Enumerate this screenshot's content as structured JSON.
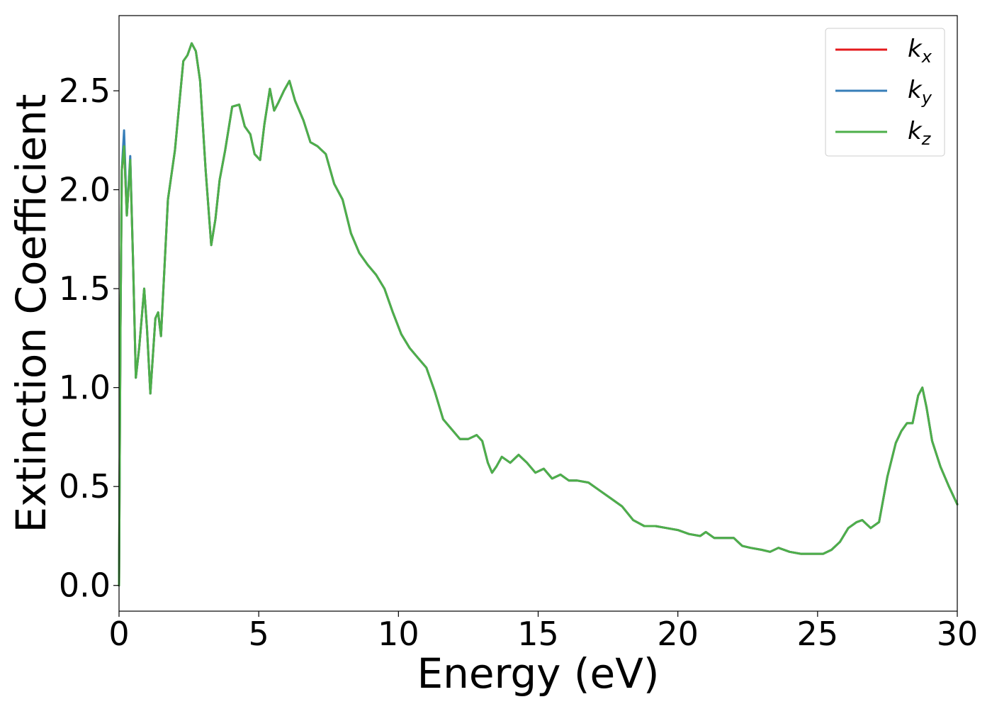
{
  "chart_data": {
    "type": "line",
    "title": "",
    "xlabel": "Energy (eV)",
    "ylabel": "Extinction Coefficient",
    "xlim": [
      0,
      30
    ],
    "ylim": [
      -0.13,
      2.88
    ],
    "xticks": [
      0,
      5,
      10,
      15,
      20,
      25,
      30
    ],
    "xtick_labels": [
      "0",
      "5",
      "10",
      "15",
      "20",
      "25",
      "30"
    ],
    "yticks": [
      0.0,
      0.5,
      1.0,
      1.5,
      2.0,
      2.5
    ],
    "ytick_labels": [
      "0.0",
      "0.5",
      "1.0",
      "1.5",
      "2.0",
      "2.5"
    ],
    "grid": false,
    "legend_position": "top-right",
    "series": [
      {
        "name": "k_x",
        "label_base": "k",
        "label_sub": "x",
        "color": "#e41a1c",
        "x": [
          0,
          0.05,
          0.1,
          0.18,
          0.28,
          0.4,
          0.5,
          0.6,
          0.72,
          0.9,
          1.0,
          1.12,
          1.3,
          1.4,
          1.5,
          1.75,
          2.0,
          2.3,
          2.45,
          2.6,
          2.75,
          2.9,
          3.1,
          3.3,
          3.45,
          3.6,
          3.8,
          4.05,
          4.3,
          4.5,
          4.7,
          4.85,
          5.05,
          5.2,
          5.4,
          5.55,
          5.7,
          5.9,
          6.1,
          6.3,
          6.6,
          6.85,
          7.1,
          7.4,
          7.7,
          8.0,
          8.3,
          8.6,
          8.9,
          9.2,
          9.5,
          9.8,
          10.1,
          10.4,
          10.7,
          11.0,
          11.3,
          11.6,
          11.9,
          12.2,
          12.5,
          12.8,
          13.0,
          13.2,
          13.35,
          13.5,
          13.7,
          14.0,
          14.3,
          14.6,
          14.9,
          15.2,
          15.5,
          15.8,
          16.1,
          16.4,
          16.8,
          17.2,
          17.6,
          18.0,
          18.4,
          18.8,
          19.2,
          19.6,
          20.0,
          20.4,
          20.8,
          21.0,
          21.3,
          21.6,
          22.0,
          22.3,
          22.6,
          23.0,
          23.3,
          23.6,
          24.0,
          24.4,
          24.8,
          25.2,
          25.5,
          25.8,
          26.1,
          26.4,
          26.6,
          26.9,
          27.2,
          27.5,
          27.8,
          28.0,
          28.2,
          28.4,
          28.6,
          28.75,
          28.9,
          29.1,
          29.4,
          29.7,
          30.0
        ],
        "y": [
          0.0,
          1.3,
          2.1,
          2.22,
          1.87,
          2.15,
          1.65,
          1.05,
          1.2,
          1.5,
          1.3,
          0.97,
          1.35,
          1.38,
          1.26,
          1.95,
          2.2,
          2.65,
          2.68,
          2.74,
          2.7,
          2.55,
          2.1,
          1.72,
          1.85,
          2.05,
          2.2,
          2.42,
          2.43,
          2.32,
          2.28,
          2.18,
          2.15,
          2.33,
          2.51,
          2.4,
          2.44,
          2.5,
          2.55,
          2.45,
          2.35,
          2.24,
          2.22,
          2.18,
          2.03,
          1.95,
          1.78,
          1.68,
          1.62,
          1.57,
          1.5,
          1.38,
          1.27,
          1.2,
          1.15,
          1.1,
          0.98,
          0.84,
          0.79,
          0.74,
          0.74,
          0.76,
          0.73,
          0.62,
          0.57,
          0.6,
          0.65,
          0.62,
          0.66,
          0.62,
          0.57,
          0.59,
          0.54,
          0.56,
          0.53,
          0.53,
          0.52,
          0.48,
          0.44,
          0.4,
          0.33,
          0.3,
          0.3,
          0.29,
          0.28,
          0.26,
          0.25,
          0.27,
          0.24,
          0.24,
          0.24,
          0.2,
          0.19,
          0.18,
          0.17,
          0.19,
          0.17,
          0.16,
          0.16,
          0.16,
          0.18,
          0.22,
          0.29,
          0.32,
          0.33,
          0.29,
          0.32,
          0.55,
          0.72,
          0.78,
          0.82,
          0.82,
          0.96,
          1.0,
          0.9,
          0.73,
          0.6,
          0.5,
          0.41
        ]
      },
      {
        "name": "k_y",
        "label_base": "k",
        "label_sub": "y",
        "color": "#377eb8",
        "x": [
          0,
          0.05,
          0.1,
          0.18,
          0.28,
          0.4,
          0.5,
          0.6,
          0.72,
          0.9,
          1.0,
          1.12,
          1.3,
          1.4,
          1.5,
          1.75,
          2.0,
          2.3,
          2.45,
          2.6,
          2.75,
          2.9,
          3.1,
          3.3,
          3.45,
          3.6,
          3.8,
          4.05,
          4.3,
          4.5,
          4.7,
          4.85,
          5.05,
          5.2,
          5.4,
          5.55,
          5.7,
          5.9,
          6.1,
          6.3,
          6.6,
          6.85,
          7.1,
          7.4,
          7.7,
          8.0,
          8.3,
          8.6,
          8.9,
          9.2,
          9.5,
          9.8,
          10.1,
          10.4,
          10.7,
          11.0,
          11.3,
          11.6,
          11.9,
          12.2,
          12.5,
          12.8,
          13.0,
          13.2,
          13.35,
          13.5,
          13.7,
          14.0,
          14.3,
          14.6,
          14.9,
          15.2,
          15.5,
          15.8,
          16.1,
          16.4,
          16.8,
          17.2,
          17.6,
          18.0,
          18.4,
          18.8,
          19.2,
          19.6,
          20.0,
          20.4,
          20.8,
          21.0,
          21.3,
          21.6,
          22.0,
          22.3,
          22.6,
          23.0,
          23.3,
          23.6,
          24.0,
          24.4,
          24.8,
          25.2,
          25.5,
          25.8,
          26.1,
          26.4,
          26.6,
          26.9,
          27.2,
          27.5,
          27.8,
          28.0,
          28.2,
          28.4,
          28.6,
          28.75,
          28.9,
          29.1,
          29.4,
          29.7,
          30.0
        ],
        "y": [
          0.0,
          1.3,
          2.1,
          2.3,
          1.87,
          2.17,
          1.65,
          1.05,
          1.2,
          1.5,
          1.3,
          0.97,
          1.35,
          1.38,
          1.26,
          1.95,
          2.2,
          2.65,
          2.68,
          2.74,
          2.7,
          2.55,
          2.1,
          1.72,
          1.85,
          2.05,
          2.2,
          2.42,
          2.43,
          2.32,
          2.28,
          2.18,
          2.15,
          2.33,
          2.51,
          2.4,
          2.44,
          2.5,
          2.55,
          2.45,
          2.35,
          2.24,
          2.22,
          2.18,
          2.03,
          1.95,
          1.78,
          1.68,
          1.62,
          1.57,
          1.5,
          1.38,
          1.27,
          1.2,
          1.15,
          1.1,
          0.98,
          0.84,
          0.79,
          0.74,
          0.74,
          0.76,
          0.73,
          0.62,
          0.57,
          0.6,
          0.65,
          0.62,
          0.66,
          0.62,
          0.57,
          0.59,
          0.54,
          0.56,
          0.53,
          0.53,
          0.52,
          0.48,
          0.44,
          0.4,
          0.33,
          0.3,
          0.3,
          0.29,
          0.28,
          0.26,
          0.25,
          0.27,
          0.24,
          0.24,
          0.24,
          0.2,
          0.19,
          0.18,
          0.17,
          0.19,
          0.17,
          0.16,
          0.16,
          0.16,
          0.18,
          0.22,
          0.29,
          0.32,
          0.33,
          0.29,
          0.32,
          0.55,
          0.72,
          0.78,
          0.82,
          0.82,
          0.96,
          1.0,
          0.9,
          0.73,
          0.6,
          0.5,
          0.41
        ]
      },
      {
        "name": "k_z",
        "label_base": "k",
        "label_sub": "z",
        "color": "#4daf4a",
        "x": [
          0,
          0.05,
          0.1,
          0.18,
          0.28,
          0.4,
          0.5,
          0.6,
          0.72,
          0.9,
          1.0,
          1.12,
          1.3,
          1.4,
          1.5,
          1.75,
          2.0,
          2.3,
          2.45,
          2.6,
          2.75,
          2.9,
          3.1,
          3.3,
          3.45,
          3.6,
          3.8,
          4.05,
          4.3,
          4.5,
          4.7,
          4.85,
          5.05,
          5.2,
          5.4,
          5.55,
          5.7,
          5.9,
          6.1,
          6.3,
          6.6,
          6.85,
          7.1,
          7.4,
          7.7,
          8.0,
          8.3,
          8.6,
          8.9,
          9.2,
          9.5,
          9.8,
          10.1,
          10.4,
          10.7,
          11.0,
          11.3,
          11.6,
          11.9,
          12.2,
          12.5,
          12.8,
          13.0,
          13.2,
          13.35,
          13.5,
          13.7,
          14.0,
          14.3,
          14.6,
          14.9,
          15.2,
          15.5,
          15.8,
          16.1,
          16.4,
          16.8,
          17.2,
          17.6,
          18.0,
          18.4,
          18.8,
          19.2,
          19.6,
          20.0,
          20.4,
          20.8,
          21.0,
          21.3,
          21.6,
          22.0,
          22.3,
          22.6,
          23.0,
          23.3,
          23.6,
          24.0,
          24.4,
          24.8,
          25.2,
          25.5,
          25.8,
          26.1,
          26.4,
          26.6,
          26.9,
          27.2,
          27.5,
          27.8,
          28.0,
          28.2,
          28.4,
          28.6,
          28.75,
          28.9,
          29.1,
          29.4,
          29.7,
          30.0
        ],
        "y": [
          0.0,
          1.3,
          2.1,
          2.22,
          1.87,
          2.15,
          1.65,
          1.05,
          1.2,
          1.5,
          1.3,
          0.97,
          1.35,
          1.38,
          1.26,
          1.95,
          2.2,
          2.65,
          2.68,
          2.74,
          2.7,
          2.55,
          2.1,
          1.72,
          1.85,
          2.05,
          2.2,
          2.42,
          2.43,
          2.32,
          2.28,
          2.18,
          2.15,
          2.33,
          2.51,
          2.4,
          2.44,
          2.5,
          2.55,
          2.45,
          2.35,
          2.24,
          2.22,
          2.18,
          2.03,
          1.95,
          1.78,
          1.68,
          1.62,
          1.57,
          1.5,
          1.38,
          1.27,
          1.2,
          1.15,
          1.1,
          0.98,
          0.84,
          0.79,
          0.74,
          0.74,
          0.76,
          0.73,
          0.62,
          0.57,
          0.6,
          0.65,
          0.62,
          0.66,
          0.62,
          0.57,
          0.59,
          0.54,
          0.56,
          0.53,
          0.53,
          0.52,
          0.48,
          0.44,
          0.4,
          0.33,
          0.3,
          0.3,
          0.29,
          0.28,
          0.26,
          0.25,
          0.27,
          0.24,
          0.24,
          0.24,
          0.2,
          0.19,
          0.18,
          0.17,
          0.19,
          0.17,
          0.16,
          0.16,
          0.16,
          0.18,
          0.22,
          0.29,
          0.32,
          0.33,
          0.29,
          0.32,
          0.55,
          0.72,
          0.78,
          0.82,
          0.82,
          0.96,
          1.0,
          0.9,
          0.73,
          0.6,
          0.5,
          0.41
        ]
      }
    ]
  }
}
